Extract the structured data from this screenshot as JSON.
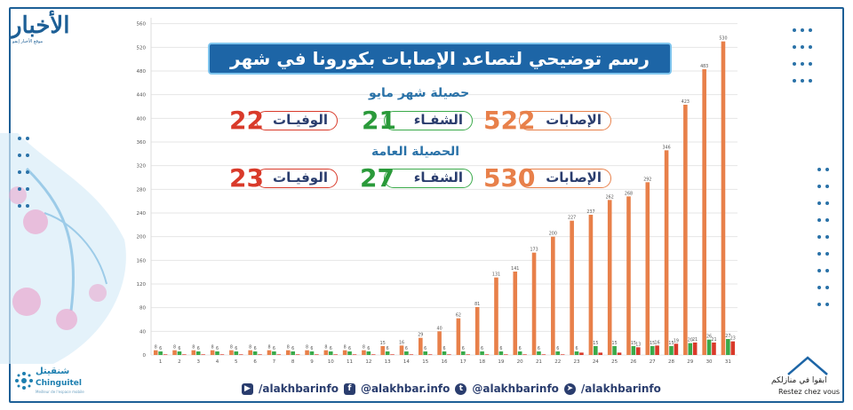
{
  "title": "رسم توضيحي لتصاعد الإصابات بكورونا في شهر مايو",
  "brand": {
    "logo": "الأخبار",
    "logo_sub": "موقع الأخبار إنفو"
  },
  "sponsor": {
    "name_ar": "شنقيتل",
    "name_en": "Chinguitel",
    "tagline": "Meilleur de l'espace mobile"
  },
  "stay_home": {
    "ar": "ابقوا في منازلكم",
    "fr": "Restez chez vous"
  },
  "month_summary": {
    "heading": "حصيلة شهر مايو",
    "cases_label": "الإصابات",
    "cases": "522",
    "recovered_label": "الشفـاء",
    "recovered": "21",
    "deaths_label": "الوفيـات",
    "deaths": "22"
  },
  "total_summary": {
    "heading": "الحصيلة العامة",
    "cases_label": "الإصابات",
    "cases": "530",
    "recovered_label": "الشفـاء",
    "recovered": "27",
    "deaths_label": "الوفيـات",
    "deaths": "23"
  },
  "social": [
    "/alakhbarinfo",
    "@alakhbar.info",
    "@alakhbarinfo",
    "/alakhbarinfo"
  ],
  "social_icons": [
    "youtube-icon",
    "facebook-icon",
    "twitter-icon",
    "telegram-icon"
  ],
  "colors": {
    "cases": "#e8804a",
    "recovered": "#3aaa4a",
    "deaths": "#d93a2a",
    "brand": "#1d65a6"
  },
  "chart_data": {
    "type": "bar",
    "categories": [
      "1",
      "2",
      "3",
      "4",
      "5",
      "6",
      "7",
      "8",
      "9",
      "10",
      "11",
      "12",
      "13",
      "14",
      "15",
      "16",
      "17",
      "18",
      "19",
      "20",
      "21",
      "22",
      "23",
      "24",
      "25",
      "26",
      "27",
      "28",
      "29",
      "30",
      "31"
    ],
    "series": [
      {
        "values": [
          8,
          8,
          8,
          8,
          8,
          8,
          8,
          8,
          8,
          8,
          8,
          8,
          15,
          16,
          29,
          40,
          62,
          81,
          131,
          141,
          173,
          200,
          227,
          237,
          262,
          268,
          292,
          346,
          423,
          483,
          530
        ]
      },
      {
        "values": [
          6,
          6,
          6,
          6,
          6,
          6,
          6,
          6,
          6,
          6,
          6,
          6,
          6,
          6,
          6,
          6,
          6,
          6,
          6,
          6,
          6,
          6,
          6,
          15,
          15,
          15,
          15,
          15,
          20,
          26,
          27
        ]
      },
      {
        "values": [
          1,
          1,
          1,
          1,
          1,
          1,
          1,
          1,
          1,
          1,
          1,
          1,
          1,
          1,
          1,
          1,
          1,
          1,
          1,
          1,
          1,
          1,
          4,
          4,
          4,
          13,
          16,
          19,
          21,
          21,
          23
        ]
      }
    ],
    "labels": [
      [
        "8",
        "8",
        "8",
        "8",
        "8",
        "8",
        "8",
        "8",
        "8",
        "8",
        "8",
        "8",
        "15",
        "16",
        "29",
        "40",
        "62",
        "81",
        "131",
        "141",
        "173",
        "200",
        "227",
        "237",
        "262",
        "268",
        "292",
        "346",
        "423",
        "483",
        "530"
      ],
      [
        "6",
        "6",
        "6",
        "6",
        "6",
        "6",
        "6",
        "6",
        "6",
        "6",
        "6",
        "6",
        "6",
        "6",
        "6",
        "6",
        "6",
        "6",
        "6",
        "6",
        "6",
        "6",
        "6",
        "15",
        "15",
        "15",
        "15",
        "15",
        "20",
        "26",
        "27"
      ],
      [
        "",
        "",
        "",
        "",
        "",
        "",
        "",
        "",
        "",
        "",
        "",
        "",
        "",
        "",
        "",
        "",
        "",
        "",
        "",
        "",
        "",
        "",
        "",
        "",
        "",
        "13",
        "16",
        "19",
        "21",
        "21",
        "23"
      ]
    ],
    "yticks": [
      0,
      40,
      80,
      120,
      160,
      200,
      240,
      280,
      320,
      360,
      400,
      440,
      480,
      520,
      560
    ],
    "ylim": [
      0,
      570
    ],
    "grid": true
  }
}
